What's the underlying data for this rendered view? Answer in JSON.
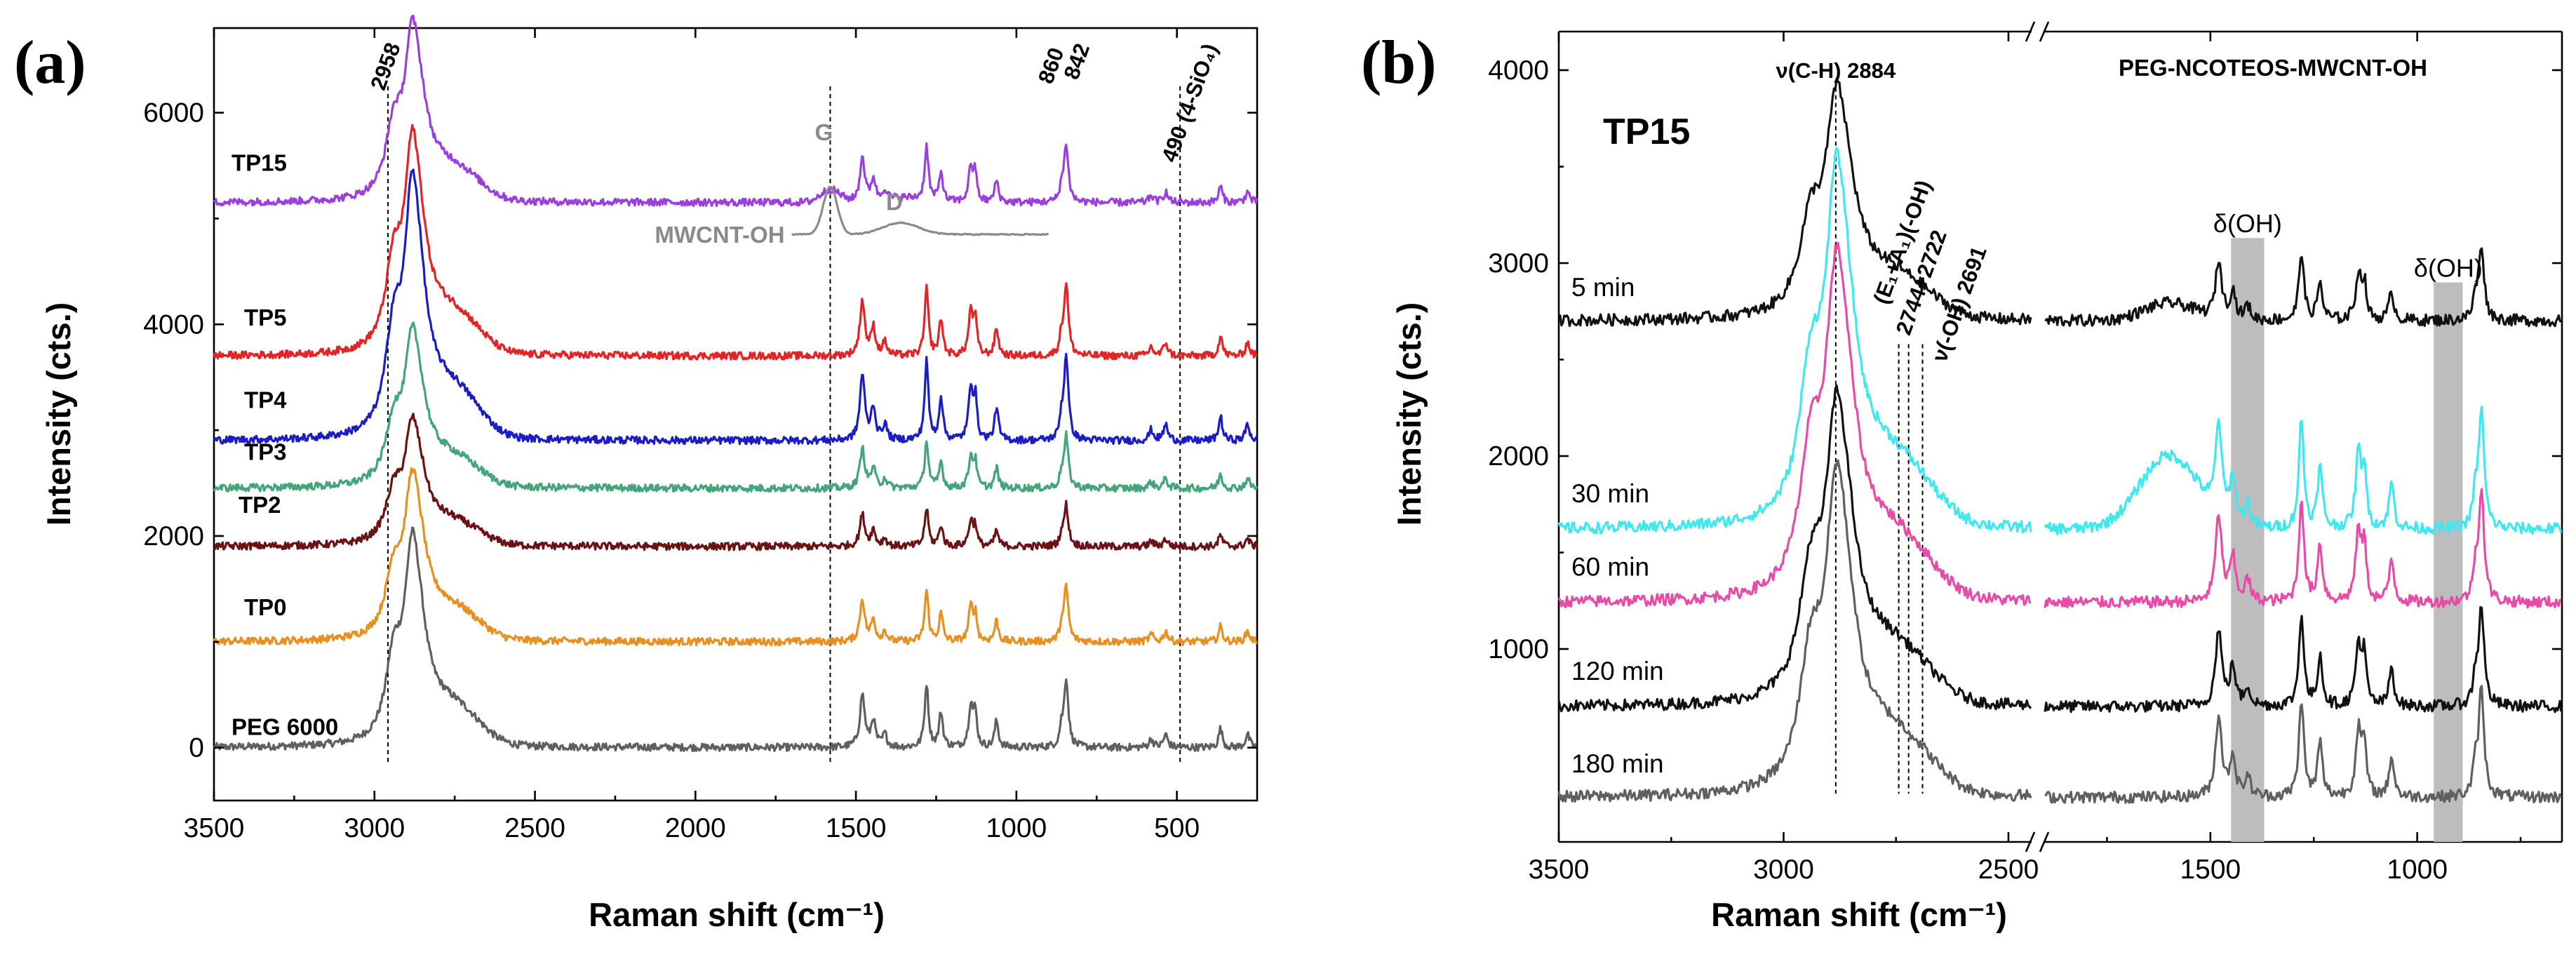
{
  "chart_data": [
    {
      "panel": "(a)",
      "type": "line",
      "xlabel": "Raman shift (cm⁻¹)",
      "ylabel": "Intensity (cts.)",
      "xlim": [
        3500,
        250
      ],
      "ylim": [
        -500,
        6800
      ],
      "xticks": [
        "3500",
        "3000",
        "2500",
        "2000",
        "1500",
        "1000",
        "500"
      ],
      "yticks": [
        "0",
        "2000",
        "4000",
        "6000"
      ],
      "series": [
        {
          "name": "PEG 6000",
          "color": "#5f5f5f",
          "baseline": 0,
          "scale": 1.0,
          "cnt": false
        },
        {
          "name": "TP0",
          "color": "#e8901f",
          "baseline": 1000,
          "scale": 0.8,
          "cnt": false
        },
        {
          "name": "TP2",
          "color": "#6b1214",
          "baseline": 1900,
          "scale": 0.6,
          "cnt": false
        },
        {
          "name": "TP3",
          "color": "#45a57a",
          "baseline": 2450,
          "scale": 0.75,
          "cnt": false
        },
        {
          "name": "TP4",
          "color": "#1a1cc4",
          "baseline": 2900,
          "scale": 1.25,
          "cnt": false
        },
        {
          "name": "TP5",
          "color": "#e32427",
          "baseline": 3700,
          "scale": 1.05,
          "cnt": false
        },
        {
          "name": "TP15",
          "color": "#9a3fdc",
          "baseline": 5150,
          "scale": 0.85,
          "cnt": true
        }
      ],
      "inset": {
        "name": "MWCNT-OH",
        "color": "#8a8a8a",
        "baseline": 4850,
        "x_from": 1700,
        "x_to": 900,
        "g_label": "G",
        "d_label": "D",
        "g_height": 450,
        "d_height": 110
      },
      "annotations": [
        {
          "text": "2958",
          "x": 2958
        },
        {
          "text": "860",
          "x": 860
        },
        {
          "text": "842",
          "x": 842
        },
        {
          "text": "490 (4-SiO₄)",
          "x": 490
        }
      ],
      "reference_lines_x": [
        2958,
        1580,
        490
      ]
    },
    {
      "panel": "(b)",
      "type": "line",
      "xlabel": "Raman shift (cm⁻¹)",
      "ylabel": "Intensity (cts.)",
      "ylim": [
        0,
        4200
      ],
      "x_segments": [
        [
          3500,
          2450
        ],
        [
          1900,
          650
        ]
      ],
      "xticks": [
        "3500",
        "3000",
        "2500",
        "1500",
        "1000"
      ],
      "yticks": [
        "1000",
        "2000",
        "3000",
        "4000"
      ],
      "title": "TP15",
      "subtitle": "PEG-NCOTEOS-MWCNT-OH",
      "series": [
        {
          "name": "5 min",
          "color": "#111111",
          "baseline": 2700,
          "scale": 0.6
        },
        {
          "name": "30 min",
          "color": "#3fe8ee",
          "baseline": 1620,
          "scale": 0.95
        },
        {
          "name": "60 min",
          "color": "#e84aa8",
          "baseline": 1240,
          "scale": 0.9
        },
        {
          "name": "120 min",
          "color": "#111111",
          "baseline": 700,
          "scale": 0.8
        },
        {
          "name": "180 min",
          "color": "#5f5f5f",
          "baseline": 230,
          "scale": 0.85
        }
      ],
      "annotations": [
        {
          "text": "ν(C-H) 2884",
          "x": 2884
        },
        {
          "text": "(E₁+A₁)(-OH)",
          "x": 2760
        },
        {
          "text": "2744+2722",
          "x": 2733
        },
        {
          "text": "ν(-OH) 2691",
          "x": 2691
        },
        {
          "text": "δ(OH)",
          "x": 1410
        },
        {
          "text": "δ(OH)",
          "x": 925
        }
      ],
      "reference_lines_x": [
        2884,
        2744,
        2722,
        2691
      ],
      "shaded_bands": [
        [
          1450,
          1370
        ],
        [
          960,
          890
        ]
      ]
    }
  ]
}
